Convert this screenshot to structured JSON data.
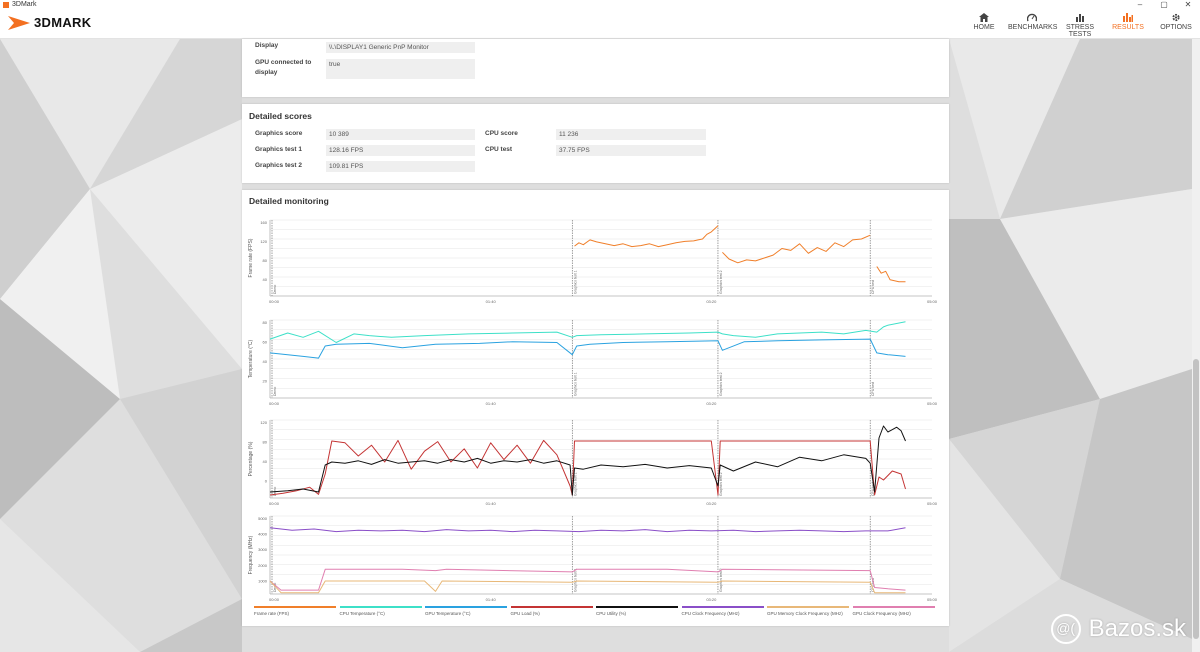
{
  "window": {
    "title": "3DMark",
    "min": "–",
    "restore": "▢",
    "close": "✕"
  },
  "app": {
    "logo_text": "3DMARK",
    "accent_color": "#f37021"
  },
  "nav": [
    {
      "label": "HOME",
      "icon": "home-icon",
      "active": false
    },
    {
      "label": "BENCHMARKS",
      "icon": "gauge-icon",
      "active": false
    },
    {
      "label": "STRESS TESTS",
      "icon": "bar-chart-icon",
      "active": false
    },
    {
      "label": "RESULTS",
      "icon": "results-chart-icon",
      "active": true
    },
    {
      "label": "OPTIONS",
      "icon": "gear-icon",
      "active": false
    }
  ],
  "system_info": {
    "display_label": "Display",
    "display_value": "\\\\.\\DISPLAY1 Generic PnP Monitor",
    "gpu_connected_label": "GPU connected to display",
    "gpu_connected_value": "true"
  },
  "detailed_scores": {
    "title": "Detailed scores",
    "left": [
      {
        "label": "Graphics score",
        "value": "10 389"
      },
      {
        "label": "Graphics test 1",
        "value": "128.16 FPS"
      },
      {
        "label": "Graphics test 2",
        "value": "109.81 FPS"
      }
    ],
    "right": [
      {
        "label": "CPU score",
        "value": "11 236"
      },
      {
        "label": "CPU test",
        "value": "37.75 FPS"
      }
    ]
  },
  "detailed_monitoring": {
    "title": "Detailed monitoring",
    "legend": [
      {
        "label": "Frame rate (FPS)",
        "color": "#f07f2a"
      },
      {
        "label": "CPU Temperature (°C)",
        "color": "#3de0c8"
      },
      {
        "label": "GPU Temperature (°C)",
        "color": "#2aa2e0"
      },
      {
        "label": "GPU Load (%)",
        "color": "#c43434"
      },
      {
        "label": "CPU Utility (%)",
        "color": "#111111"
      },
      {
        "label": "CPU Clock Frequency (MHz)",
        "color": "#8a4fc8"
      },
      {
        "label": "GPU Memory Clock Frequency (MHz)",
        "color": "#e8b878"
      },
      {
        "label": "GPU Clock Frequency (MHz)",
        "color": "#e07fb0"
      }
    ]
  },
  "watermark": {
    "text": "Bazos.sk",
    "symbol": "@("
  },
  "chart_data": [
    {
      "type": "line",
      "ylabel": "Frame rate (FPS)",
      "yticks": [
        "160",
        "120",
        "80",
        "40"
      ],
      "ylim": [
        0,
        160
      ],
      "xticks": [
        "00:00",
        "01:40",
        "03:20",
        "05:00"
      ],
      "markers": [
        "Demo",
        "Graphics test 1",
        "Graphics test 2",
        "CPU test"
      ],
      "series": [
        {
          "color": "#f07f2a",
          "x": [
            138,
            140,
            142,
            145,
            148,
            152,
            156,
            160,
            164,
            168,
            172,
            176,
            180,
            184,
            188,
            192,
            194,
            196,
            198,
            200,
            203
          ],
          "y": [
            105,
            112,
            108,
            118,
            114,
            110,
            106,
            110,
            104,
            106,
            110,
            104,
            108,
            112,
            115,
            116,
            118,
            120,
            130,
            135,
            148
          ]
        },
        {
          "color": "#f07f2a",
          "x": [
            205,
            208,
            212,
            216,
            220,
            224,
            228,
            232,
            236,
            240,
            244,
            248,
            252,
            256,
            260,
            264,
            268,
            272
          ],
          "y": [
            92,
            78,
            70,
            76,
            74,
            80,
            86,
            100,
            96,
            110,
            90,
            102,
            94,
            112,
            104,
            118,
            120,
            128
          ]
        },
        {
          "color": "#f07f2a",
          "x": [
            275,
            277,
            279,
            281,
            283,
            285,
            288
          ],
          "y": [
            62,
            48,
            52,
            34,
            32,
            30,
            30
          ]
        }
      ]
    },
    {
      "type": "line",
      "ylabel": "Temperature (°C)",
      "yticks": [
        "80",
        "60",
        "40",
        "20"
      ],
      "ylim": [
        0,
        90
      ],
      "xticks": [
        "00:00",
        "01:40",
        "03:20",
        "05:00"
      ],
      "markers": [
        "Demo",
        "Graphics test 1",
        "Graphics test 2",
        "CPU test"
      ],
      "series": [
        {
          "name": "CPU Temperature (°C)",
          "color": "#3de0c8",
          "x": [
            0,
            8,
            15,
            22,
            30,
            38,
            45,
            55,
            70,
            90,
            110,
            130,
            137,
            139,
            150,
            170,
            190,
            203,
            205,
            210,
            220,
            230,
            240,
            250,
            260,
            270,
            275,
            278,
            280,
            288
          ],
          "y": [
            68,
            75,
            70,
            77,
            64,
            74,
            72,
            70,
            72,
            74,
            75,
            76,
            70,
            72,
            73,
            74,
            75,
            76,
            74,
            72,
            70,
            74,
            75,
            76,
            74,
            78,
            76,
            82,
            84,
            88
          ]
        },
        {
          "name": "GPU Temperature (°C)",
          "color": "#2aa2e0",
          "x": [
            0,
            15,
            22,
            25,
            30,
            45,
            60,
            75,
            95,
            110,
            130,
            137,
            139,
            145,
            160,
            180,
            203,
            205,
            215,
            230,
            250,
            272,
            275,
            280,
            288
          ],
          "y": [
            52,
            48,
            46,
            60,
            62,
            63,
            58,
            62,
            63,
            65,
            64,
            50,
            60,
            62,
            64,
            65,
            66,
            55,
            65,
            66,
            67,
            68,
            52,
            50,
            48
          ]
        }
      ]
    },
    {
      "type": "line",
      "ylabel": "Percentage (%)",
      "yticks": [
        "120",
        "80",
        "40",
        "0"
      ],
      "ylim": [
        0,
        130
      ],
      "xticks": [
        "00:00",
        "01:40",
        "03:20",
        "05:00"
      ],
      "markers": [
        "Demo",
        "Graphics test 1",
        "Graphics test 2",
        "CPU test"
      ],
      "series": [
        {
          "name": "GPU Load (%)",
          "color": "#c43434",
          "x": [
            0,
            6,
            12,
            18,
            22,
            25,
            28,
            34,
            40,
            46,
            52,
            58,
            64,
            70,
            76,
            82,
            88,
            94,
            100,
            106,
            112,
            118,
            124,
            130,
            136,
            137,
            138,
            140,
            160,
            180,
            200,
            203,
            204,
            206,
            230,
            250,
            272,
            274,
            276,
            278,
            282,
            286,
            288
          ],
          "y": [
            5,
            8,
            12,
            18,
            6,
            40,
            95,
            92,
            70,
            88,
            60,
            96,
            48,
            78,
            94,
            60,
            82,
            50,
            92,
            64,
            88,
            58,
            96,
            72,
            20,
            5,
            95,
            95,
            95,
            95,
            95,
            5,
            95,
            95,
            95,
            95,
            95,
            5,
            35,
            30,
            45,
            40,
            15
          ]
        },
        {
          "name": "CPU Utility (%)",
          "color": "#111111",
          "x": [
            0,
            8,
            15,
            22,
            25,
            28,
            34,
            40,
            46,
            52,
            58,
            64,
            70,
            76,
            82,
            88,
            94,
            100,
            106,
            112,
            118,
            124,
            130,
            136,
            137,
            138,
            142,
            150,
            160,
            170,
            180,
            190,
            200,
            203,
            204,
            210,
            220,
            230,
            240,
            250,
            260,
            270,
            272,
            274,
            276,
            278,
            280,
            284,
            286,
            288
          ],
          "y": [
            10,
            12,
            15,
            10,
            55,
            60,
            58,
            62,
            56,
            64,
            58,
            60,
            62,
            58,
            64,
            60,
            66,
            58,
            62,
            60,
            64,
            58,
            62,
            55,
            5,
            50,
            48,
            55,
            52,
            56,
            50,
            54,
            50,
            20,
            55,
            45,
            60,
            52,
            68,
            62,
            72,
            66,
            58,
            10,
            100,
            120,
            110,
            118,
            112,
            95
          ]
        }
      ]
    },
    {
      "type": "line",
      "ylabel": "Frequency (MHz)",
      "yticks": [
        "5000",
        "4000",
        "3000",
        "2000",
        "1000"
      ],
      "ylim": [
        0,
        6000
      ],
      "xticks": [
        "00:00",
        "01:40",
        "03:20",
        "05:00"
      ],
      "markers": [
        "Demo",
        "Graphics test 1",
        "Graphics test 2",
        "CPU test"
      ],
      "series": [
        {
          "name": "CPU Clock Frequency (MHz)",
          "color": "#8a4fc8",
          "x": [
            0,
            10,
            20,
            30,
            40,
            50,
            60,
            70,
            80,
            90,
            100,
            110,
            120,
            130,
            140,
            150,
            160,
            170,
            180,
            190,
            200,
            210,
            220,
            230,
            240,
            250,
            260,
            270,
            280,
            288
          ],
          "y": [
            5100,
            4900,
            5000,
            4800,
            4900,
            4850,
            4900,
            4800,
            4950,
            4850,
            4900,
            4800,
            4900,
            4850,
            4800,
            4900,
            4850,
            4950,
            4800,
            4900,
            4850,
            4900,
            4800,
            4850,
            4900,
            4850,
            4800,
            4850,
            4850,
            5100
          ]
        },
        {
          "name": "GPU Clock Frequency (MHz)",
          "color": "#e07fb0",
          "x": [
            0,
            5,
            22,
            25,
            28,
            60,
            75,
            80,
            137,
            139,
            180,
            203,
            205,
            272,
            274,
            280,
            288
          ],
          "y": [
            1000,
            300,
            300,
            1900,
            1900,
            1900,
            1800,
            1900,
            1700,
            1900,
            1900,
            1700,
            1900,
            1800,
            500,
            400,
            300
          ]
        },
        {
          "name": "GPU Memory Clock Frequency (MHz)",
          "color": "#e8b878",
          "x": [
            0,
            5,
            22,
            25,
            50,
            70,
            75,
            78,
            137,
            139,
            203,
            205,
            272,
            274,
            288
          ],
          "y": [
            1000,
            100,
            100,
            1000,
            1000,
            1000,
            200,
            1000,
            900,
            1000,
            900,
            1000,
            900,
            100,
            100
          ]
        }
      ]
    }
  ]
}
